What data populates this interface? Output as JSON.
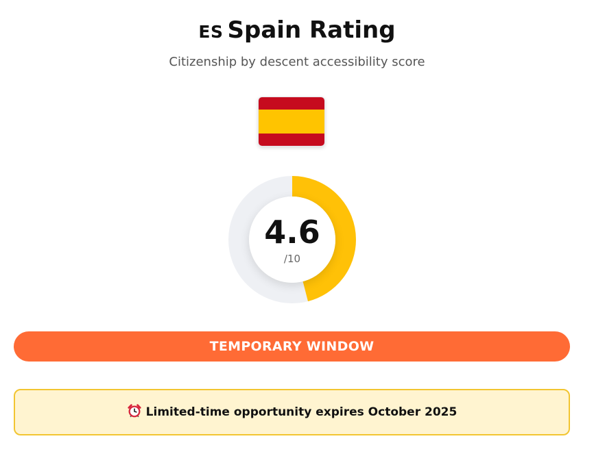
{
  "header": {
    "country_code": "ES",
    "title": "Spain Rating",
    "subtitle": "Citizenship by descent accessibility score"
  },
  "flag": {
    "country": "Spain",
    "colors": {
      "red": "#c60b1e",
      "yellow": "#ffc400"
    }
  },
  "rating": {
    "score": 4.6,
    "score_label": "4.6",
    "max_label": "/10",
    "max": 10,
    "colors": {
      "fill": "#ffc107",
      "track": "#eef0f4"
    }
  },
  "status": {
    "label": "TEMPORARY WINDOW",
    "color": "#ff6b35"
  },
  "notice": {
    "icon": "alarm-clock-icon",
    "text": "Limited-time opportunity expires October 2025",
    "colors": {
      "background": "#fff4d0",
      "border": "#f2c531"
    }
  }
}
